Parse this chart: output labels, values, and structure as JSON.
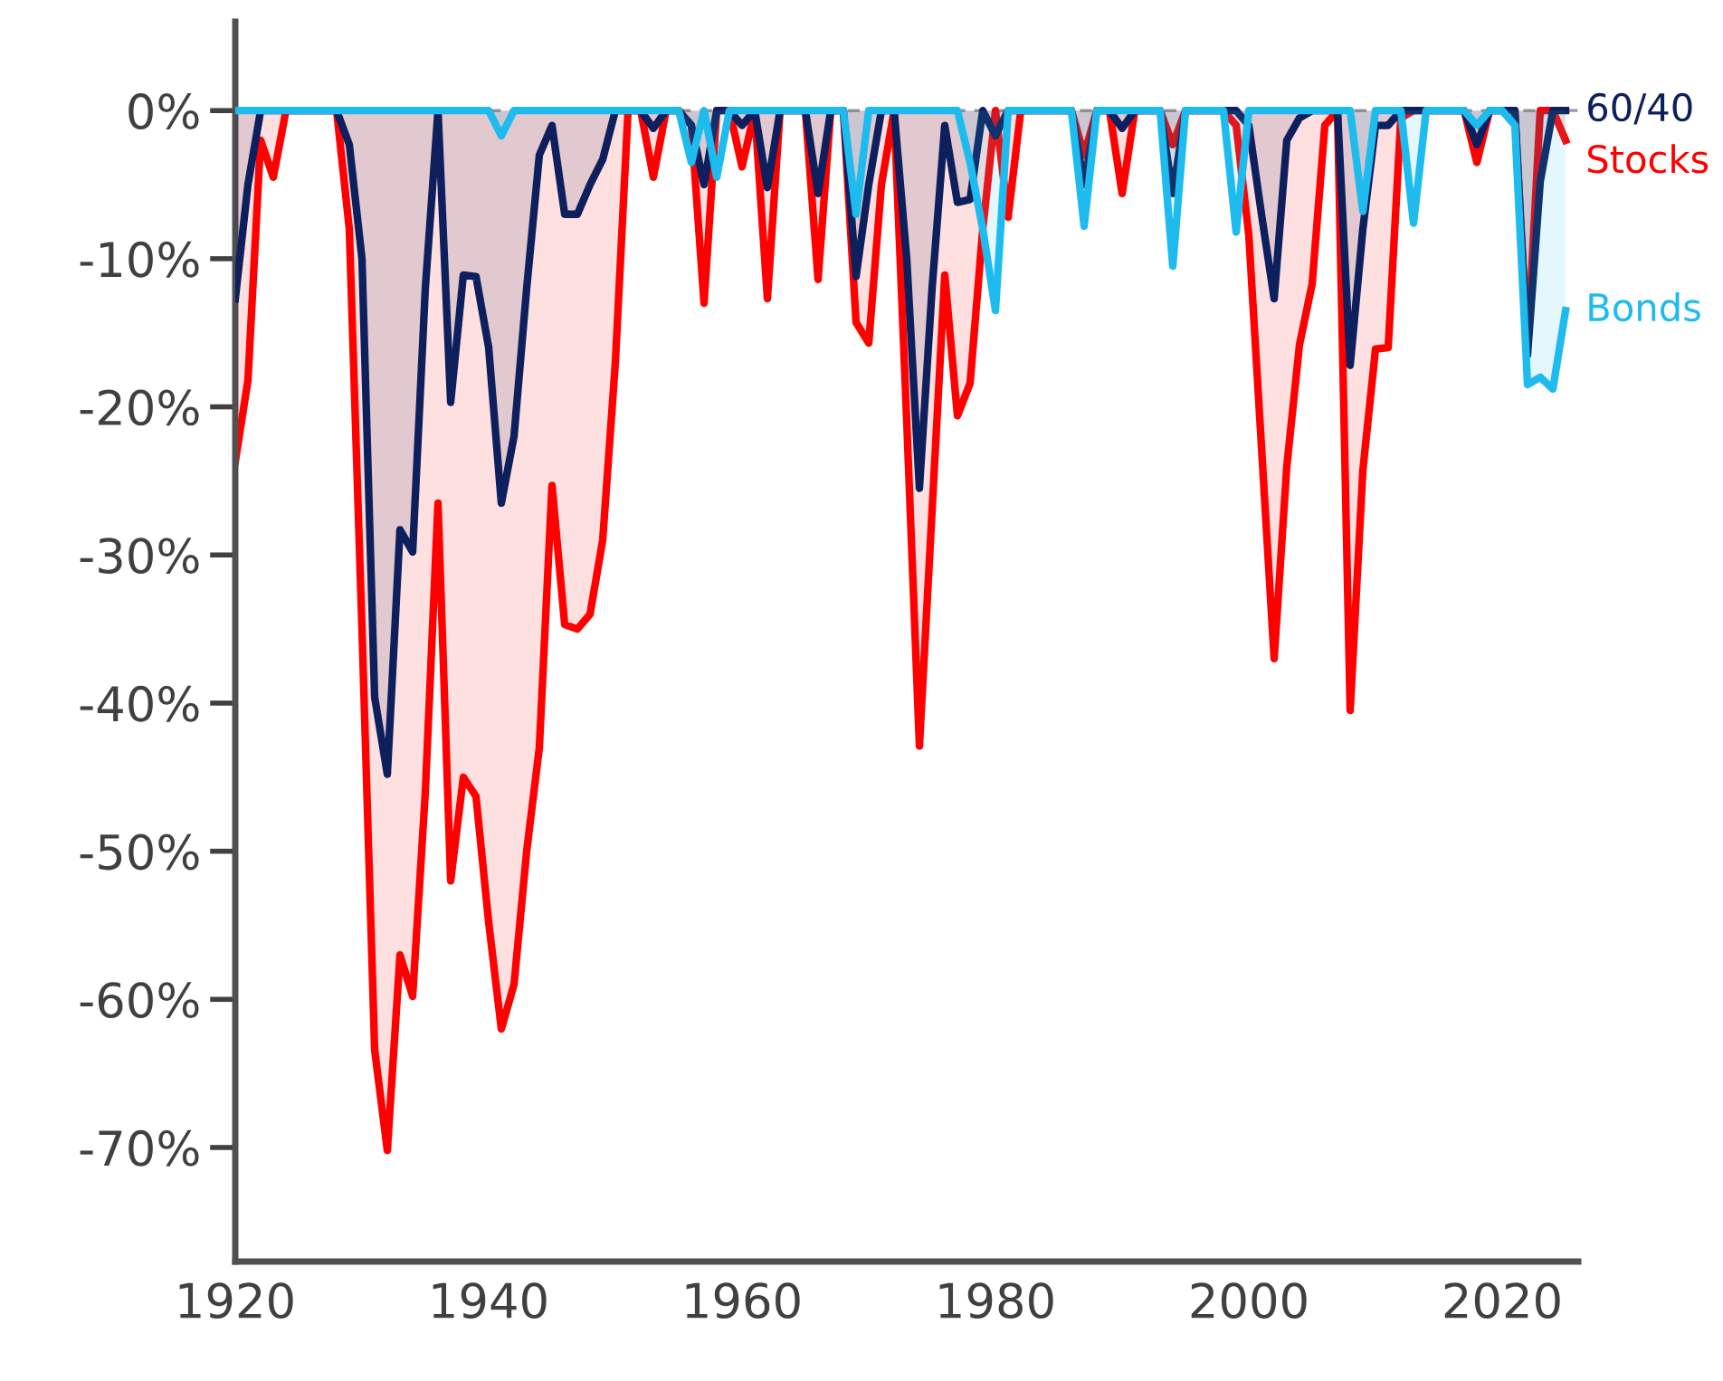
{
  "chart_data": {
    "type": "area",
    "x": [
      1920,
      1921,
      1922,
      1923,
      1924,
      1925,
      1926,
      1927,
      1928,
      1929,
      1930,
      1931,
      1932,
      1933,
      1934,
      1935,
      1936,
      1937,
      1938,
      1939,
      1940,
      1941,
      1942,
      1943,
      1944,
      1945,
      1946,
      1947,
      1948,
      1949,
      1950,
      1951,
      1952,
      1953,
      1954,
      1955,
      1956,
      1957,
      1958,
      1959,
      1960,
      1961,
      1962,
      1963,
      1964,
      1965,
      1966,
      1967,
      1968,
      1969,
      1970,
      1971,
      1972,
      1973,
      1974,
      1975,
      1976,
      1977,
      1978,
      1979,
      1980,
      1981,
      1982,
      1983,
      1984,
      1985,
      1986,
      1987,
      1988,
      1989,
      1990,
      1991,
      1992,
      1993,
      1994,
      1995,
      1996,
      1997,
      1998,
      1999,
      2000,
      2001,
      2002,
      2003,
      2004,
      2005,
      2006,
      2007,
      2008,
      2009,
      2010,
      2011,
      2012,
      2013,
      2014,
      2015,
      2016,
      2017,
      2018,
      2019,
      2020,
      2021,
      2022,
      2023,
      2024,
      2025
    ],
    "series": [
      {
        "name": "Stocks",
        "color": "#ff0000",
        "values": [
          -23.7,
          -18.2,
          -2,
          -4.5,
          0,
          0,
          0,
          0,
          0,
          -8,
          -35,
          -63.4,
          -70.2,
          -57,
          -59.8,
          -46,
          -26.5,
          -52,
          -45,
          -46.3,
          -54.8,
          -62,
          -59,
          -50,
          -43,
          -25.3,
          -34.7,
          -35,
          -34,
          -29,
          -17,
          0,
          0,
          -4.5,
          0,
          0,
          -1,
          -13,
          0,
          0,
          -3.8,
          0,
          -12.7,
          0,
          0,
          0,
          -11.4,
          0,
          0,
          -14.3,
          -15.7,
          -5,
          0,
          -21,
          -42.9,
          -27,
          -11.1,
          -20.6,
          -18.4,
          -8,
          0,
          -7.2,
          0,
          0,
          0,
          0,
          0,
          -3,
          0,
          0,
          -5.6,
          0,
          0,
          0,
          -2.3,
          0,
          0,
          0,
          0,
          -1,
          -8.4,
          -22.7,
          -37,
          -24,
          -15.8,
          -11.7,
          -1,
          0,
          -40.5,
          -24.3,
          -16.1,
          -16,
          -0.5,
          0,
          0,
          0,
          0,
          0,
          -3.5,
          0,
          0,
          0,
          -16.1,
          0,
          0,
          -2
        ]
      },
      {
        "name": "60/40",
        "color": "#0d1f5c",
        "values": [
          -12.7,
          -5,
          0,
          0,
          0,
          0,
          0,
          0,
          0,
          -2.3,
          -10,
          -39.6,
          -44.8,
          -28.3,
          -29.8,
          -12,
          0,
          -19.7,
          -11.1,
          -11.2,
          -16,
          -26.5,
          -22,
          -12,
          -3,
          -1,
          -7,
          -7,
          -5,
          -3.3,
          0,
          0,
          0,
          -1.2,
          0,
          0,
          -1,
          -5,
          0,
          0,
          -1,
          0,
          -5.2,
          0,
          0,
          0,
          -5.6,
          0,
          0,
          -11.2,
          -5,
          0,
          0,
          -10,
          -25.5,
          -12,
          -1,
          -6.2,
          -6,
          0,
          -1.7,
          0,
          0,
          0,
          0,
          0,
          0,
          -5,
          0,
          0,
          -1.2,
          0,
          0,
          0,
          -5.6,
          0,
          0,
          0,
          0,
          0,
          -1,
          -7,
          -12.7,
          -2,
          -0.5,
          0,
          0,
          0,
          -17.2,
          -8,
          -1,
          -1,
          0,
          0,
          0,
          0,
          0,
          0,
          -2.3,
          0,
          0,
          0,
          -16.5,
          -4.8,
          0,
          0
        ]
      },
      {
        "name": "Bonds",
        "color": "#1ebbee",
        "values": [
          0,
          0,
          0,
          0,
          0,
          0,
          0,
          0,
          0,
          0,
          0,
          0,
          0,
          0,
          0,
          0,
          0,
          0,
          0,
          0,
          0,
          -1.7,
          0,
          0,
          0,
          0,
          0,
          0,
          0,
          0,
          0,
          0,
          0,
          0,
          0,
          0,
          -3.5,
          0,
          -4.5,
          0,
          0,
          0,
          0,
          0,
          0,
          0,
          0,
          0,
          0,
          -7,
          0,
          0,
          0,
          0,
          0,
          0,
          0,
          0,
          -3.5,
          -8,
          -13.5,
          0,
          0,
          0,
          0,
          0,
          0,
          -7.8,
          0,
          0,
          0,
          0,
          0,
          0,
          -10.5,
          0,
          0,
          0,
          0,
          -8.2,
          0,
          0,
          0,
          0,
          0,
          0,
          0,
          0,
          0,
          -6.8,
          0,
          0,
          0,
          -7.6,
          0,
          0,
          0,
          0,
          -1,
          0,
          0,
          -1,
          -18.5,
          -18,
          -18.8,
          -13.5
        ]
      }
    ],
    "xlim": [
      1920,
      2026
    ],
    "xticks": [
      1920,
      1940,
      1960,
      1980,
      2000,
      2020
    ],
    "ylim": [
      -77.7,
      6
    ],
    "yticks": [
      {
        "value": 0,
        "label": "0%"
      },
      {
        "value": -10,
        "label": "-10%"
      },
      {
        "value": -20,
        "label": "-20%"
      },
      {
        "value": -30,
        "label": "-30%"
      },
      {
        "value": -40,
        "label": "-40%"
      },
      {
        "value": -50,
        "label": "-50%"
      },
      {
        "value": -60,
        "label": "-60%"
      },
      {
        "value": -70,
        "label": "-70%"
      }
    ],
    "ref_lines": [
      {
        "axis": "y",
        "value": 0,
        "color": "#999999",
        "line_style": "dashed"
      }
    ],
    "grid": false,
    "legend": false
  }
}
